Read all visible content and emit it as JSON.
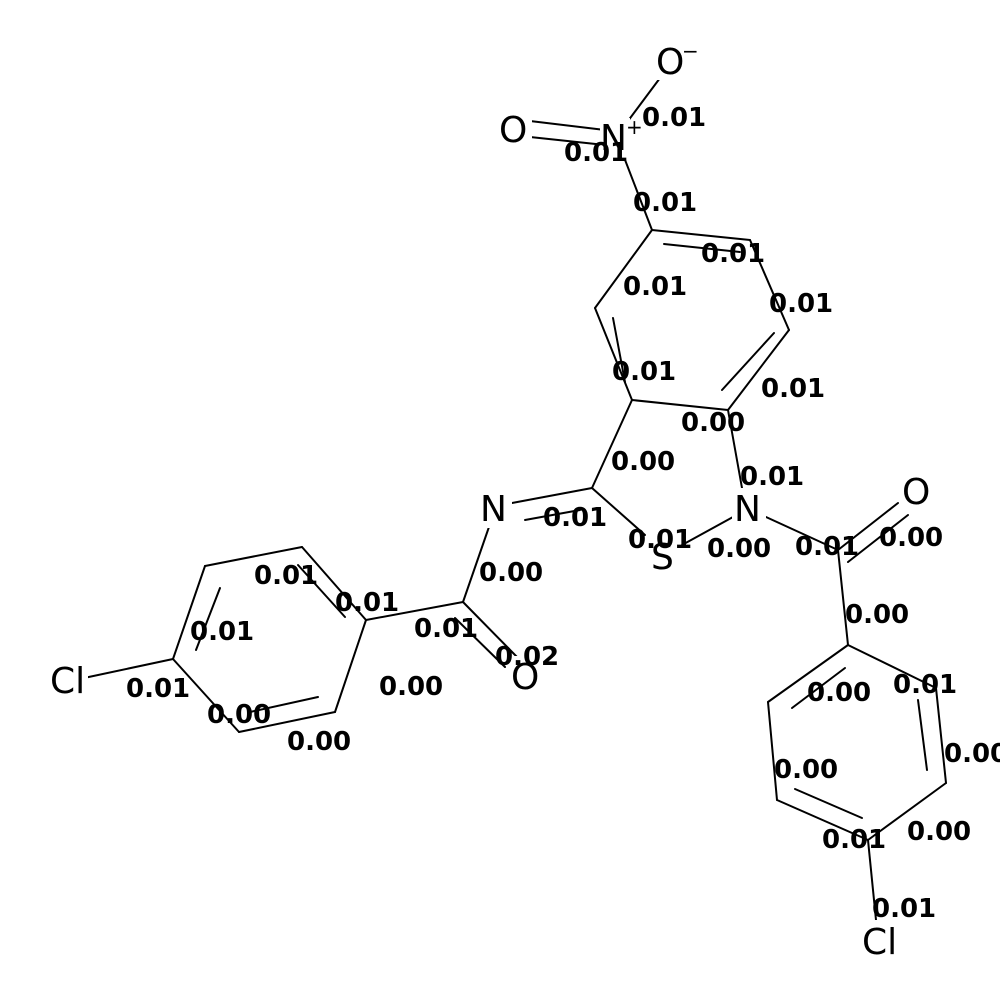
{
  "atoms": {
    "o_minus": "O",
    "o_minus_charge": "−",
    "o_nitro": "O",
    "n_nitro": "N",
    "n_nitro_charge": "+",
    "n_imine": "N",
    "n_ring": "N",
    "s_ring": "S",
    "o_carbonyl_left": "O",
    "o_carbonyl_right": "O",
    "cl_left": "Cl",
    "cl_bottom": "Cl"
  },
  "values": [
    "0.01",
    "0.01",
    "0.01",
    "0.01",
    "0.01",
    "0.01",
    "0.01",
    "0.01",
    "0.00",
    "0.00",
    "0.01",
    "0.01",
    "0.00",
    "0.00",
    "0.01",
    "0.00",
    "0.00",
    "0.01",
    "0.01",
    "0.01",
    "0.01",
    "0.02",
    "0.00",
    "0.01",
    "0.00",
    "0.00",
    "0.00",
    "0.01",
    "0.00",
    "0.00",
    "0.01",
    "0.00",
    "0.01"
  ]
}
